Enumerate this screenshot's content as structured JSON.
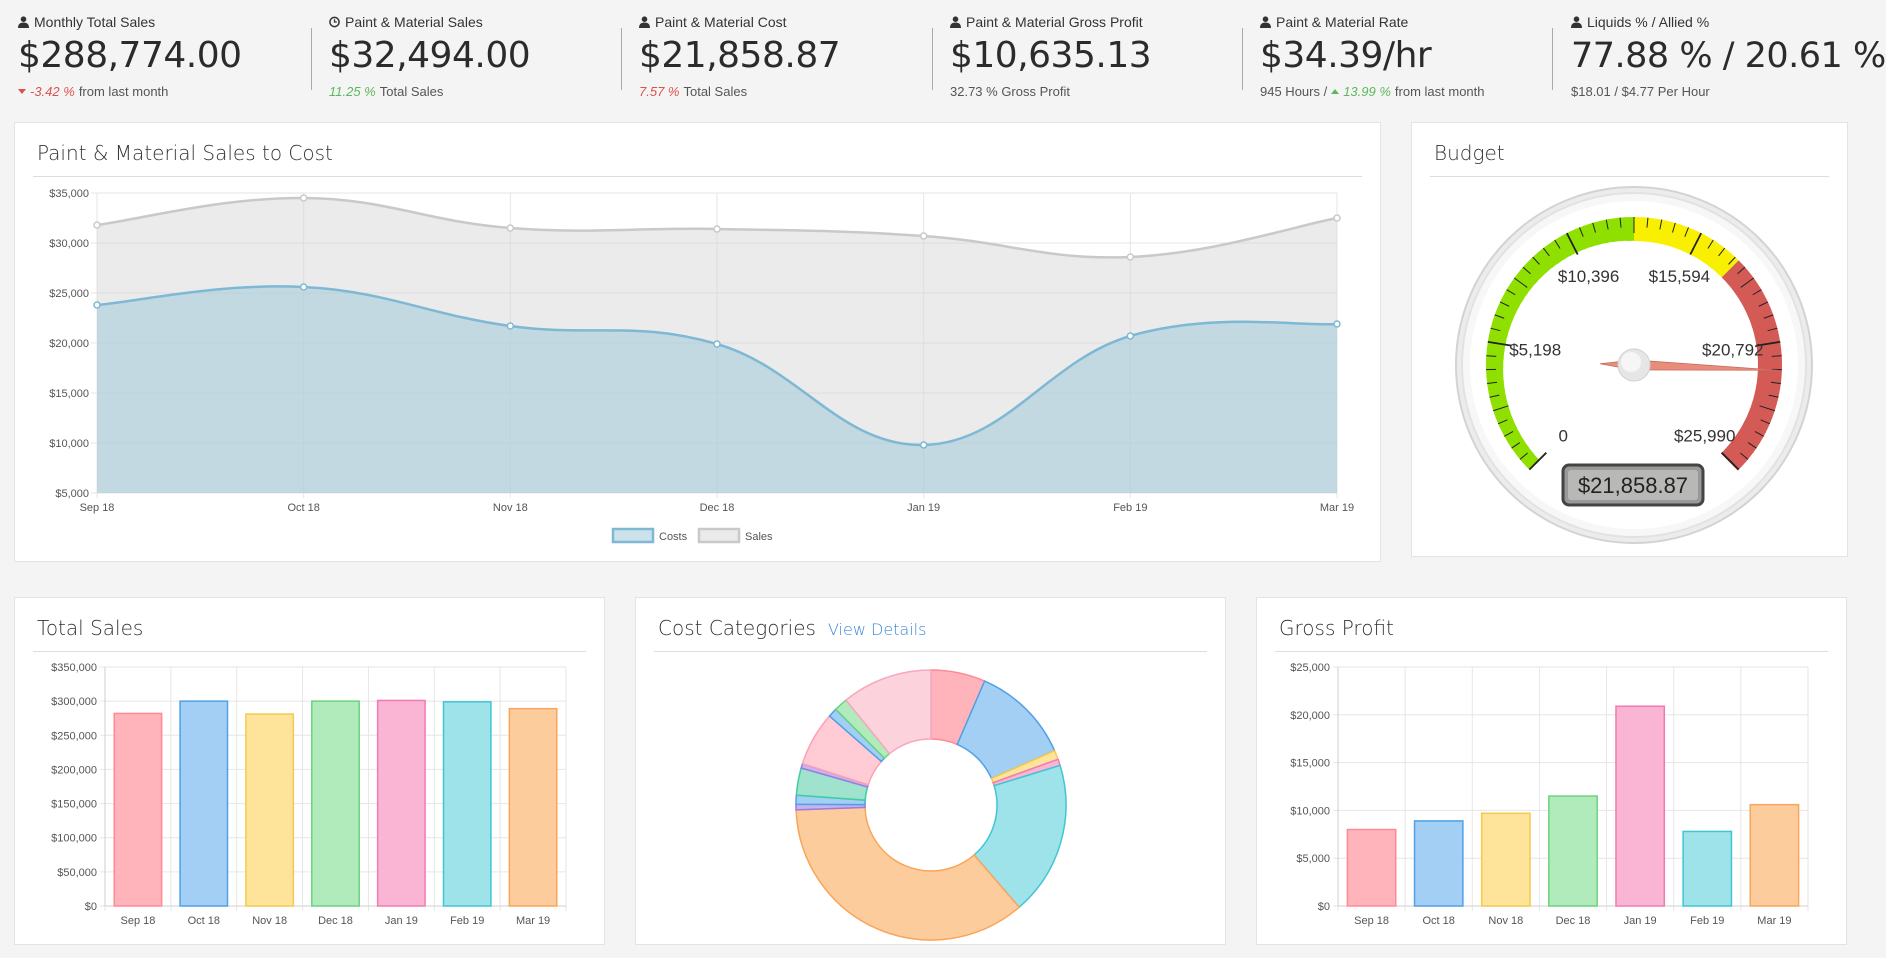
{
  "kpis": [
    {
      "label": "Monthly Total Sales",
      "icon": "user-icon",
      "value": "$288,774.00",
      "pct": "-3.42 %",
      "pct_color": "red",
      "arrow": "down",
      "sub_pre": "",
      "sub_post": "from last month"
    },
    {
      "label": "Paint & Material Sales",
      "icon": "clock-icon",
      "value": "$32,494.00",
      "pct": "11.25 %",
      "pct_color": "green",
      "arrow": "",
      "sub_pre": "",
      "sub_post": "Total Sales"
    },
    {
      "label": "Paint & Material Cost",
      "icon": "user-icon",
      "value": "$21,858.87",
      "pct": "7.57 %",
      "pct_color": "red",
      "arrow": "",
      "sub_pre": "",
      "sub_post": "Total Sales"
    },
    {
      "label": "Paint & Material Gross Profit",
      "icon": "user-icon",
      "value": "$10,635.13",
      "pct": "",
      "pct_color": "",
      "arrow": "",
      "sub_pre": "32.73 % Gross Profit",
      "sub_post": ""
    },
    {
      "label": "Paint & Material Rate",
      "icon": "user-icon",
      "value": "$34.39/hr",
      "pct": "13.99 %",
      "pct_color": "green",
      "arrow": "up",
      "sub_pre": "945 Hours /",
      "sub_post": "from last month"
    },
    {
      "label": "Liquids % / Allied %",
      "icon": "user-icon",
      "value": "77.88 % / 20.61 %",
      "pct": "",
      "pct_color": "",
      "arrow": "",
      "sub_pre": "$18.01 / $4.77 Per Hour",
      "sub_post": ""
    }
  ],
  "panels": {
    "sales_cost": {
      "title": "Paint & Material Sales to Cost"
    },
    "budget": {
      "title": "Budget"
    },
    "total_sales": {
      "title": "Total Sales"
    },
    "cost_categories": {
      "title": "Cost Categories",
      "link": "View Details"
    },
    "gross_profit": {
      "title": "Gross Profit"
    }
  },
  "chart_data": [
    {
      "type": "area",
      "title": "Paint & Material Sales to Cost",
      "categories": [
        "Sep 18",
        "Oct 18",
        "Nov 18",
        "Dec 18",
        "Jan 19",
        "Feb 19",
        "Mar 19"
      ],
      "ylim": [
        5000,
        35000
      ],
      "yticks": [
        "$5,000",
        "$10,000",
        "$15,000",
        "$20,000",
        "$25,000",
        "$30,000",
        "$35,000"
      ],
      "series": [
        {
          "name": "Costs",
          "values": [
            23800,
            25600,
            21700,
            19900,
            9800,
            20700,
            21900
          ],
          "color": "#7fb8d4"
        },
        {
          "name": "Sales",
          "values": [
            31800,
            34500,
            31500,
            31400,
            30700,
            28600,
            32500
          ],
          "color": "#c9c9c9"
        }
      ],
      "legend": "bottom"
    },
    {
      "type": "gauge",
      "title": "Budget",
      "tick_labels": [
        "0",
        "$5,198",
        "$10,396",
        "$15,594",
        "$20,792",
        "$25,990"
      ],
      "min": 0,
      "max": 25990,
      "value": 21858.87,
      "display": "$21,858.87"
    },
    {
      "type": "bar",
      "title": "Total Sales",
      "categories": [
        "Sep 18",
        "Oct 18",
        "Nov 18",
        "Dec 18",
        "Jan 19",
        "Feb 19",
        "Mar 19"
      ],
      "values": [
        282000,
        300000,
        281000,
        300000,
        301000,
        299000,
        289000
      ],
      "ylim": [
        0,
        350000
      ],
      "yticks": [
        "$0",
        "$50,000",
        "$100,000",
        "$150,000",
        "$200,000",
        "$250,000",
        "$300,000",
        "$350,000"
      ],
      "colors": [
        "#ffb3ba",
        "#a3cff5",
        "#fde49a",
        "#b2ebbb",
        "#fab5d4",
        "#9fe3ea",
        "#fdcc9c"
      ],
      "borders": [
        "#ff8a96",
        "#4ea1e6",
        "#f5c94a",
        "#6ad37f",
        "#f07bb1",
        "#3fc6d4",
        "#f9a55a"
      ]
    },
    {
      "type": "pie",
      "title": "Cost Categories",
      "values": [
        6,
        11,
        1,
        0.7,
        17,
        33,
        0.6,
        1,
        3,
        0.5,
        6,
        1,
        1.5,
        10
      ],
      "colors": [
        "#ffb3ba",
        "#a3cff5",
        "#fde49a",
        "#fab5d4",
        "#9fe3ea",
        "#fdcc9c",
        "#c7b3ef",
        "#a3cff5",
        "#9fe3ce",
        "#c7b3ef",
        "#ffccd6",
        "#a3cff5",
        "#b2ebbb",
        "#fcd2dd"
      ],
      "borders": [
        "#ff8a96",
        "#4ea1e6",
        "#f5c94a",
        "#f07bb1",
        "#3fc6d4",
        "#f9a55a",
        "#9b7be0",
        "#4ea1e6",
        "#3fcea0",
        "#9b7be0",
        "#ff9fb2",
        "#4ea1e6",
        "#6ad37f",
        "#f7a7bd"
      ]
    },
    {
      "type": "bar",
      "title": "Gross Profit",
      "categories": [
        "Sep 18",
        "Oct 18",
        "Nov 18",
        "Dec 18",
        "Jan 19",
        "Feb 19",
        "Mar 19"
      ],
      "values": [
        8000,
        8900,
        9700,
        11500,
        20900,
        7800,
        10600
      ],
      "ylim": [
        0,
        25000
      ],
      "yticks": [
        "$0",
        "$5,000",
        "$10,000",
        "$15,000",
        "$20,000",
        "$25,000"
      ],
      "colors": [
        "#ffb3ba",
        "#a3cff5",
        "#fde49a",
        "#b2ebbb",
        "#fab5d4",
        "#9fe3ea",
        "#fdcc9c"
      ],
      "borders": [
        "#ff8a96",
        "#4ea1e6",
        "#f5c94a",
        "#6ad37f",
        "#f07bb1",
        "#3fc6d4",
        "#f9a55a"
      ]
    }
  ]
}
